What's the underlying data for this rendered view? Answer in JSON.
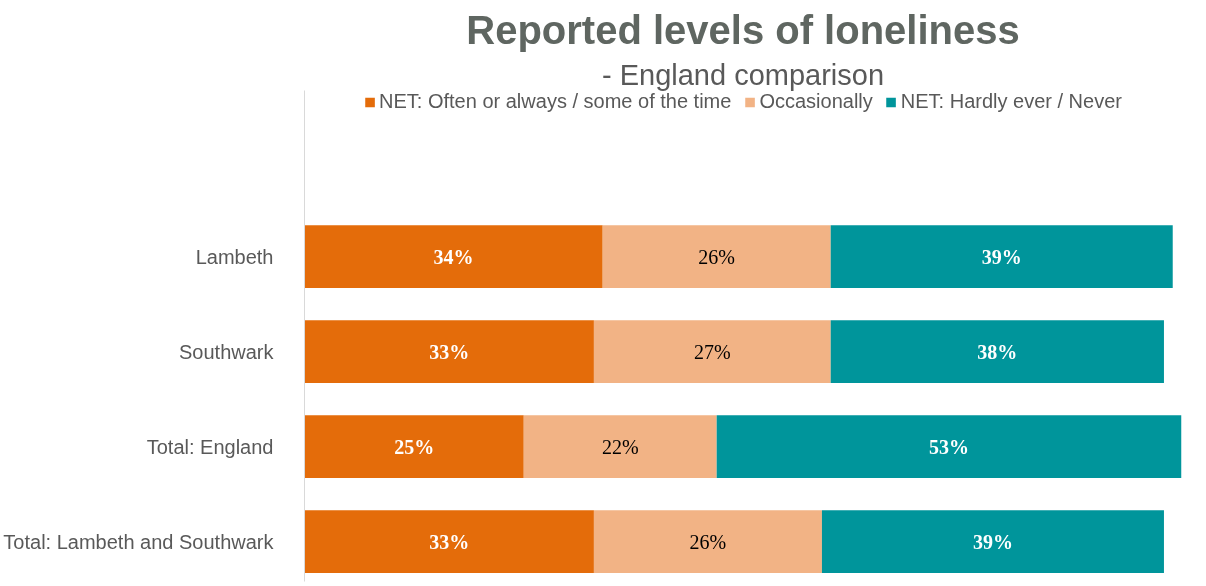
{
  "chart_data": {
    "type": "bar",
    "orientation": "horizontal",
    "stacked": true,
    "title": "Reported levels of loneliness",
    "subtitle": "- England comparison",
    "categories": [
      "Lambeth",
      "Southwark",
      "Total: England",
      "Total: Lambeth and Southwark"
    ],
    "series": [
      {
        "name": "NET: Often or always / some of the time",
        "color": "#e46c0a",
        "values": [
          34,
          33,
          25,
          33
        ],
        "value_labels": [
          "34%",
          "33%",
          "25%",
          "33%"
        ]
      },
      {
        "name": "Occasionally",
        "color": "#f2b385",
        "values": [
          26,
          27,
          22,
          26
        ],
        "value_labels": [
          "26%",
          "27%",
          "22%",
          "26%"
        ]
      },
      {
        "name": "NET: Hardly ever / Never",
        "color": "#00959b",
        "values": [
          39,
          38,
          53,
          39
        ],
        "value_labels": [
          "39%",
          "38%",
          "53%",
          "39%"
        ]
      }
    ],
    "xlim": [
      0,
      100
    ],
    "tick_labels": "y",
    "grid": false,
    "legend": "top"
  }
}
